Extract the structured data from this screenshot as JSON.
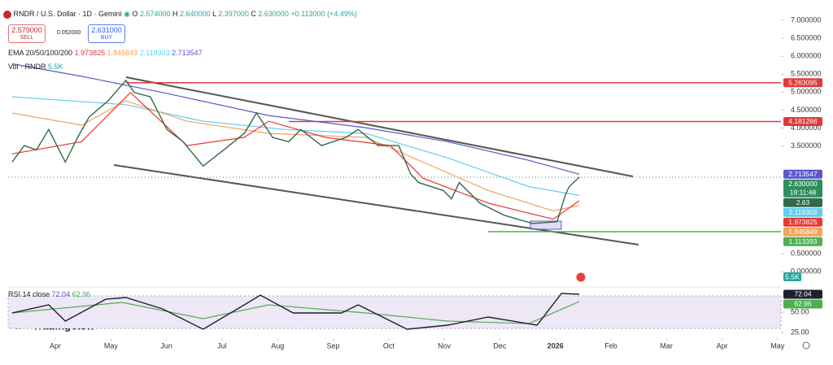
{
  "header": {
    "symbol": "RNDR / U.S. Dollar · 1D · Gemini",
    "ohlc": [
      {
        "label": "O",
        "value": "2.574000"
      },
      {
        "label": "H",
        "value": "2.640000"
      },
      {
        "label": "L",
        "value": "2.397000"
      },
      {
        "label": "C",
        "value": "2.630000"
      }
    ],
    "change": "+0.113000 (+4.49%)",
    "sell": {
      "price": "2.579000",
      "label": "SELL"
    },
    "spread": "0.052000",
    "buy": {
      "price": "2.631000",
      "label": "BUY"
    },
    "ema_label": "EMA 20/50/100/200",
    "vol_label": "Vol · RNDR",
    "vol_value": "5.5K",
    "brand": "TradingView"
  },
  "chart_data": [
    {
      "type": "line",
      "xlim": [
        -0.85,
        13.06
      ],
      "ylim": [
        -0.36,
        7.16
      ],
      "yticks": [
        {
          "value": 7,
          "label": "7.000000"
        },
        {
          "value": 6.5,
          "label": "6.500000"
        },
        {
          "value": 6,
          "label": "6.000000"
        },
        {
          "value": 5.5,
          "label": "5.500000"
        },
        {
          "value": 5,
          "label": "5.000000"
        },
        {
          "value": 4.5,
          "label": "4.500000"
        },
        {
          "value": 4,
          "label": "4.000000"
        },
        {
          "value": 3.5,
          "label": "3.500000"
        },
        {
          "value": 0.5,
          "label": "0.500000"
        },
        {
          "value": 0,
          "label": "0.000000"
        }
      ],
      "series": [
        {
          "color": "#2f6b4a",
          "x": [
            -0.78,
            -0.56,
            -0.34,
            -0.12,
            0.18,
            0.4,
            0.61,
            0.95,
            1.27,
            1.42,
            1.71,
            2.01,
            2.3,
            2.66,
            3.03,
            3.4,
            3.62,
            3.91,
            4.2,
            4.42,
            4.79,
            5.23,
            5.45,
            5.81,
            6.18,
            6.4,
            6.54,
            6.98,
            7.13,
            7.27,
            7.64,
            8.08,
            8.59,
            9.03,
            9.18,
            9.25,
            9.43
          ],
          "values": [
            3.05,
            3.51,
            3.39,
            3.96,
            3.05,
            3.74,
            4.31,
            4.76,
            5.33,
            4.99,
            4.87,
            3.96,
            3.62,
            2.94,
            3.39,
            3.85,
            4.42,
            3.74,
            3.62,
            3.96,
            3.51,
            3.74,
            3.96,
            3.51,
            3.51,
            2.71,
            2.48,
            2.26,
            2.03,
            2.48,
            1.91,
            1.57,
            1.34,
            1.39,
            2.14,
            2.37,
            2.63
          ]
        },
        {
          "color": "#e53935",
          "x": [
            -0.78,
            0.47,
            1.35,
            2.37,
            3.4,
            3.84,
            4.86,
            6.03,
            6.62,
            7.79,
            8.96,
            9.43
          ],
          "values": [
            3.28,
            3.62,
            4.99,
            3.51,
            3.74,
            4.19,
            3.74,
            3.51,
            2.6,
            1.91,
            1.46,
            1.973825
          ]
        },
        {
          "color": "#f4a25c",
          "x": [
            -0.78,
            0.47,
            1.27,
            2.37,
            3.84,
            5.59,
            6.62,
            7.79,
            8.96,
            9.43
          ],
          "values": [
            4.42,
            4.08,
            4.76,
            4.19,
            3.85,
            3.74,
            3.05,
            2.26,
            1.69,
            1.845849
          ]
        },
        {
          "color": "#5fcfee",
          "x": [
            -0.78,
            1.27,
            2.66,
            4.13,
            5.59,
            7.06,
            8.52,
            9.43
          ],
          "values": [
            4.87,
            4.65,
            4.19,
            3.96,
            3.85,
            3.17,
            2.37,
            2.119303
          ]
        },
        {
          "color": "#5b57d1",
          "x": [
            -0.78,
            0.47,
            1.93,
            3.84,
            5.59,
            7.06,
            8.52,
            9.43
          ],
          "values": [
            5.79,
            5.44,
            4.99,
            4.35,
            4.01,
            3.62,
            3.1,
            2.713547
          ]
        }
      ],
      "levels": [
        {
          "value": 5.263095,
          "color": "#e03a3a",
          "from": 1.27
        },
        {
          "value": 4.181266,
          "color": "#e03a3a",
          "from": 4.2
        },
        {
          "value": 2.63,
          "label": "2.630000",
          "color": "#2f8f5b",
          "countdown": "18:11:48"
        },
        {
          "value": 1.113393,
          "color": "#4caf50",
          "from": 7.79
        }
      ]
    },
    {
      "type": "line",
      "title": "RSI 14 close",
      "xlim": [
        -0.85,
        13.06
      ],
      "ylim": [
        22,
        78
      ],
      "band": [
        30,
        70
      ],
      "xticks": [
        {
          "value": 0,
          "label": "Apr"
        },
        {
          "value": 1,
          "label": "May"
        },
        {
          "value": 2,
          "label": "Jun"
        },
        {
          "value": 3,
          "label": "Jul"
        },
        {
          "value": 4,
          "label": "Aug"
        },
        {
          "value": 5,
          "label": "Sep"
        },
        {
          "value": 6,
          "label": "Oct"
        },
        {
          "value": 7,
          "label": "Nov"
        },
        {
          "value": 8,
          "label": "Dec"
        },
        {
          "value": 9,
          "label": "2026"
        },
        {
          "value": 10,
          "label": "Feb"
        },
        {
          "value": 11,
          "label": "Mar"
        },
        {
          "value": 12,
          "label": "Apr"
        },
        {
          "value": 13,
          "label": "May"
        }
      ],
      "yticks": [
        {
          "value": 50,
          "label": "50.00"
        },
        {
          "value": 25,
          "label": "25.00"
        }
      ],
      "series": [
        {
          "color": "#1f1f2e",
          "x": [
            -0.78,
            -0.12,
            0.18,
            0.91,
            1.27,
            1.93,
            2.66,
            3.4,
            3.69,
            4.28,
            5.15,
            5.45,
            5.89,
            6.33,
            7.06,
            7.79,
            8.67,
            9.11,
            9.43
          ],
          "values": [
            49,
            59,
            39,
            66,
            68,
            54,
            29,
            59,
            71,
            49,
            49,
            59,
            44,
            29,
            34,
            44,
            34,
            73,
            72.04
          ]
        },
        {
          "color": "#4caf50",
          "x": [
            -0.78,
            1.2,
            2.66,
            3.84,
            5.59,
            7.06,
            8.52,
            9.43
          ],
          "values": [
            49,
            62,
            42,
            59,
            49,
            39,
            36,
            62.96
          ]
        }
      ]
    }
  ]
}
